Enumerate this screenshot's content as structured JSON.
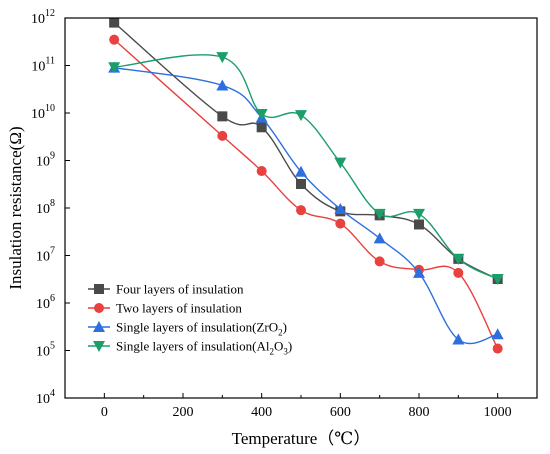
{
  "chart_data": {
    "type": "line",
    "xlabel": "Temperature（℃）",
    "ylabel": "Insulation resistance(Ω)",
    "xlim": [
      -100,
      1100
    ],
    "xticks": [
      0,
      200,
      400,
      600,
      800,
      1000
    ],
    "ylim_log10": [
      4,
      12
    ],
    "yticks_exponents": [
      4,
      5,
      6,
      7,
      8,
      9,
      10,
      11,
      12
    ],
    "ytick_base": "10",
    "y_scale": "log",
    "legend_position": "bottom-left",
    "grid": false,
    "series": [
      {
        "name": "Four layers of insulation",
        "marker": "square",
        "color": "#4a4a4a",
        "points": [
          {
            "x": 25,
            "y": 800000000000.0
          },
          {
            "x": 300,
            "y": 8500000000.0
          },
          {
            "x": 400,
            "y": 5000000000.0
          },
          {
            "x": 500,
            "y": 320000000.0
          },
          {
            "x": 600,
            "y": 85000000.0
          },
          {
            "x": 700,
            "y": 70000000.0
          },
          {
            "x": 800,
            "y": 45000000.0
          },
          {
            "x": 900,
            "y": 8500000.0
          },
          {
            "x": 1000,
            "y": 3200000.0
          }
        ]
      },
      {
        "name": "Two layers of insulation",
        "marker": "circle",
        "color": "#e8413e",
        "points": [
          {
            "x": 25,
            "y": 350000000000.0
          },
          {
            "x": 300,
            "y": 3300000000.0
          },
          {
            "x": 400,
            "y": 600000000.0
          },
          {
            "x": 500,
            "y": 90000000.0
          },
          {
            "x": 600,
            "y": 47000000.0
          },
          {
            "x": 700,
            "y": 7500000.0
          },
          {
            "x": 800,
            "y": 5000000.0
          },
          {
            "x": 900,
            "y": 4300000.0
          },
          {
            "x": 1000,
            "y": 110000.0
          }
        ]
      },
      {
        "name": "Single layers of insulation(ZrO",
        "name_sub": "2",
        "name_end": ")",
        "marker": "triangle-up",
        "color": "#2e6fe0",
        "points": [
          {
            "x": 25,
            "y": 90000000000.0
          },
          {
            "x": 300,
            "y": 38000000000.0
          },
          {
            "x": 400,
            "y": 8000000000.0
          },
          {
            "x": 500,
            "y": 580000000.0
          },
          {
            "x": 600,
            "y": 95000000.0
          },
          {
            "x": 700,
            "y": 23000000.0
          },
          {
            "x": 800,
            "y": 4300000.0
          },
          {
            "x": 900,
            "y": 170000.0
          },
          {
            "x": 1000,
            "y": 220000.0
          }
        ]
      },
      {
        "name": "Single layers of insulation(Al",
        "name_sub": "2",
        "name_mid": "O",
        "name_sub2": "3",
        "name_end": ")",
        "marker": "triangle-down",
        "color": "#1b9e6a",
        "points": [
          {
            "x": 25,
            "y": 92000000000.0
          },
          {
            "x": 300,
            "y": 150000000000.0
          },
          {
            "x": 400,
            "y": 9500000000.0
          },
          {
            "x": 500,
            "y": 9000000000.0
          },
          {
            "x": 600,
            "y": 900000000.0
          },
          {
            "x": 700,
            "y": 75000000.0
          },
          {
            "x": 800,
            "y": 75000000.0
          },
          {
            "x": 900,
            "y": 8500000.0
          },
          {
            "x": 1000,
            "y": 3200000.0
          }
        ]
      }
    ]
  }
}
